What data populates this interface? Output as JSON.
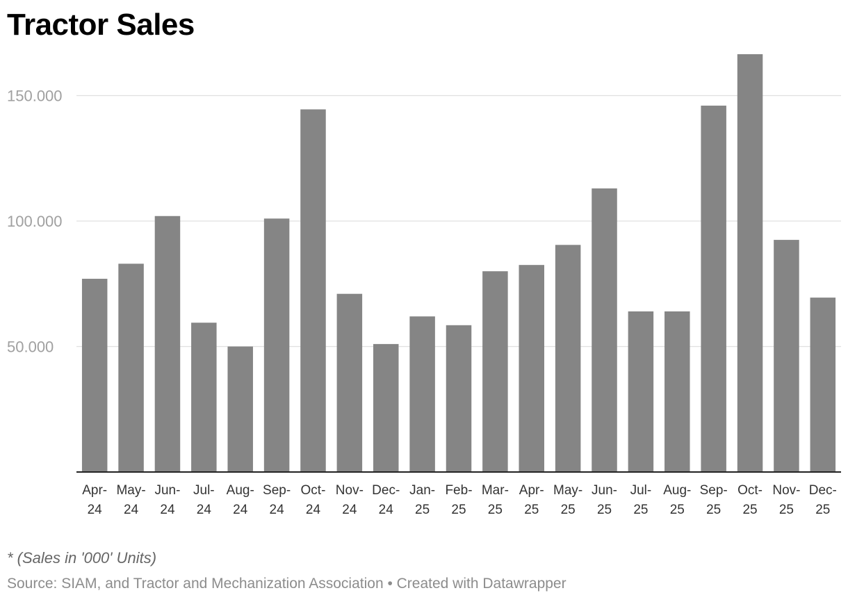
{
  "chart_data": {
    "type": "bar",
    "title": "Tractor Sales",
    "categories": [
      [
        "Apr-",
        "24"
      ],
      [
        "May-",
        "24"
      ],
      [
        "Jun-",
        "24"
      ],
      [
        "Jul-",
        "24"
      ],
      [
        "Aug-",
        "24"
      ],
      [
        "Sep-",
        "24"
      ],
      [
        "Oct-",
        "24"
      ],
      [
        "Nov-",
        "24"
      ],
      [
        "Dec-",
        "24"
      ],
      [
        "Jan-",
        "25"
      ],
      [
        "Feb-",
        "25"
      ],
      [
        "Mar-",
        "25"
      ],
      [
        "Apr-",
        "25"
      ],
      [
        "May-",
        "25"
      ],
      [
        "Jun-",
        "25"
      ],
      [
        "Jul-",
        "25"
      ],
      [
        "Aug-",
        "25"
      ],
      [
        "Sep-",
        "25"
      ],
      [
        "Oct-",
        "25"
      ],
      [
        "Nov-",
        "25"
      ],
      [
        "Dec-",
        "25"
      ]
    ],
    "values": [
      77,
      83,
      102,
      59.5,
      50,
      101,
      144.5,
      71,
      51,
      62,
      58.5,
      80,
      82.5,
      90.5,
      113,
      64,
      64,
      146,
      166.5,
      92.5,
      69.5
    ],
    "values_unit": "thousand units",
    "ylim": [
      0,
      167
    ],
    "yticks": [
      50,
      100,
      150
    ],
    "ytick_labels": [
      "50.000",
      "100.000",
      "150.000"
    ],
    "grid": true,
    "bar_color": "#858585",
    "xlabel": "",
    "ylabel": ""
  },
  "note": "* (Sales in '000' Units)",
  "footer": "Source: SIAM, and Tractor and Mechanization Association • Created with Datawrapper"
}
